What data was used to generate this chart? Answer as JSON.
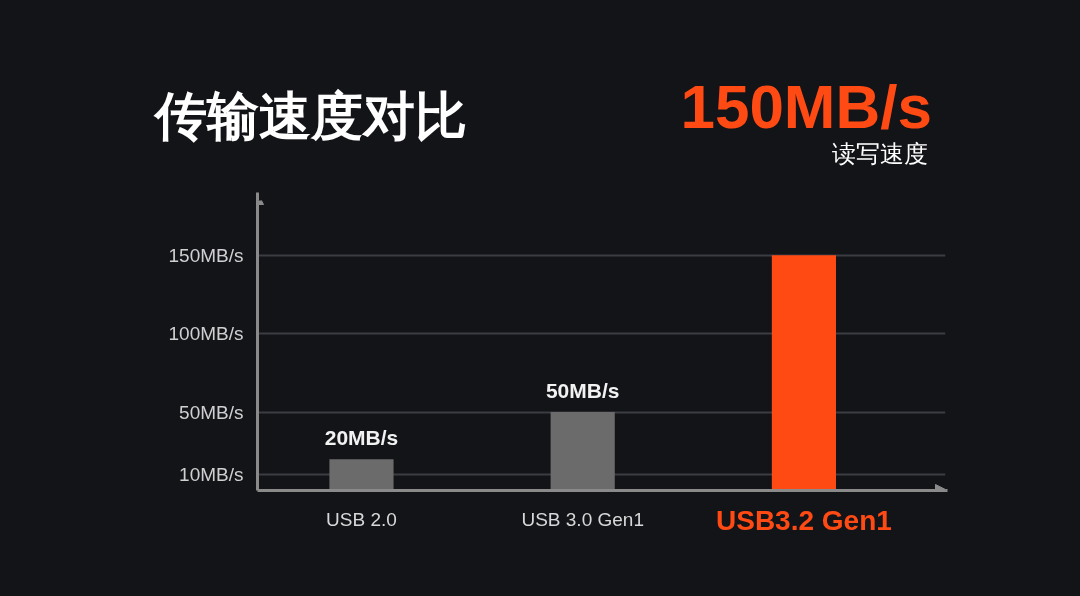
{
  "chart_data": {
    "type": "bar",
    "title": "传输速度对比",
    "annotations": [
      "150MB/s",
      "读写速度"
    ],
    "categories": [
      "USB 2.0",
      "USB 3.0 Gen1",
      "USB3.2 Gen1"
    ],
    "values": [
      20,
      50,
      150
    ],
    "colors": [
      "#6b6b6b",
      "#6b6b6b",
      "#ff4a14"
    ],
    "value_labels": [
      "20MB/s",
      "50MB/s",
      null
    ],
    "ylim": [
      0,
      185
    ],
    "yticks": [
      {
        "value": 10,
        "label": "10MB/s"
      },
      {
        "value": 50,
        "label": "50MB/s"
      },
      {
        "value": 100,
        "label": "100MB/s"
      },
      {
        "value": 150,
        "label": "150MB/s"
      }
    ],
    "grid": "y"
  }
}
